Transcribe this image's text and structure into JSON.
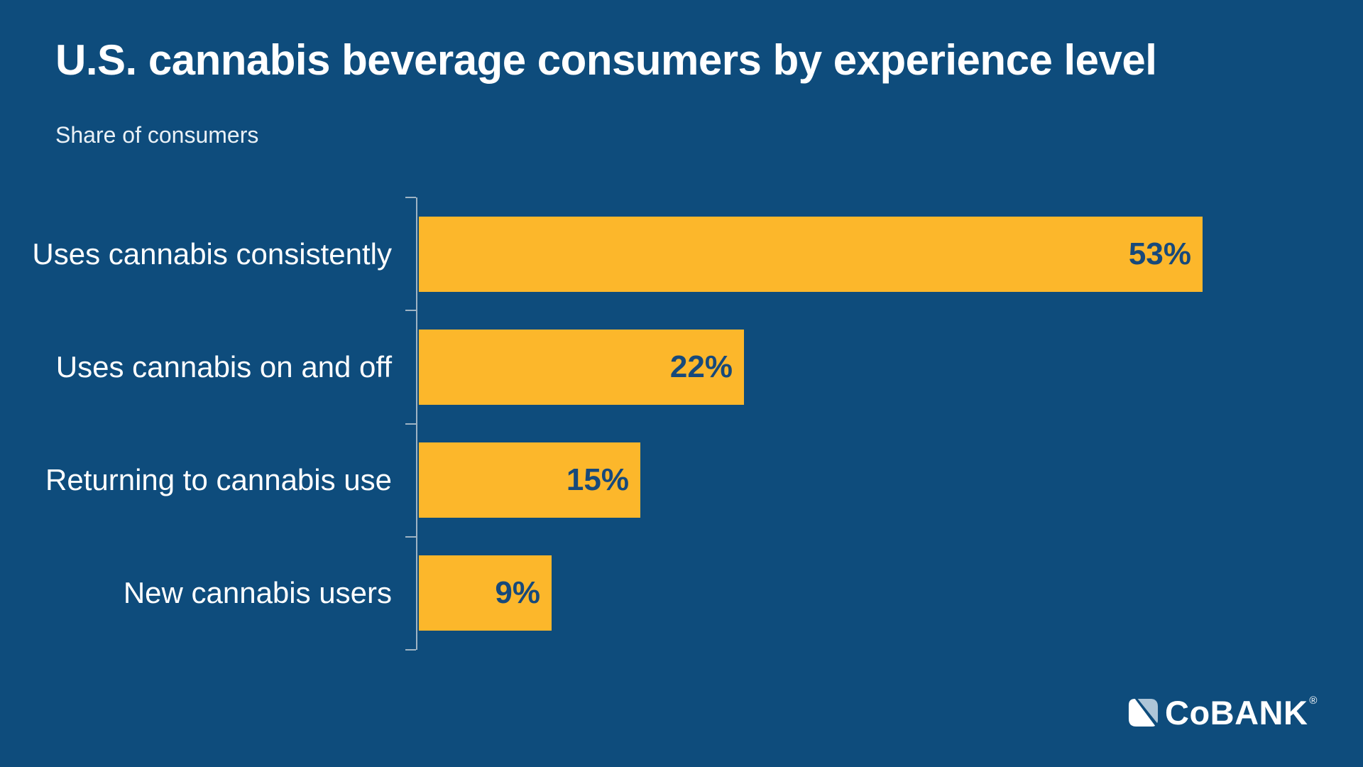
{
  "header": {
    "title": "U.S. cannabis beverage consumers by experience level",
    "subtitle": "Share of consumers"
  },
  "chart_data": {
    "type": "bar",
    "orientation": "horizontal",
    "title": "U.S. cannabis beverage consumers by experience level",
    "xlabel": "",
    "ylabel": "Share of consumers",
    "categories": [
      "Uses cannabis consistently",
      "Uses cannabis on and off",
      "Returning to cannabis use",
      "New cannabis users"
    ],
    "values": [
      53,
      22,
      15,
      9
    ],
    "value_labels": [
      "53%",
      "22%",
      "15%",
      "9%"
    ],
    "xlim": [
      0,
      53
    ],
    "grid": false,
    "legend": false,
    "value_label_position": "inside-right",
    "bar_color": "#FCB72B",
    "value_label_color": "#17497B"
  },
  "footer": {
    "logo_text": "CoBANK",
    "registered_mark": "®"
  },
  "colors": {
    "background": "#0E4C7C",
    "bar": "#FCB72B",
    "text_light": "#FFFFFF",
    "value_text": "#17497B",
    "axis": "#9FB4C4",
    "logo_accent": "#AEC6D8"
  }
}
